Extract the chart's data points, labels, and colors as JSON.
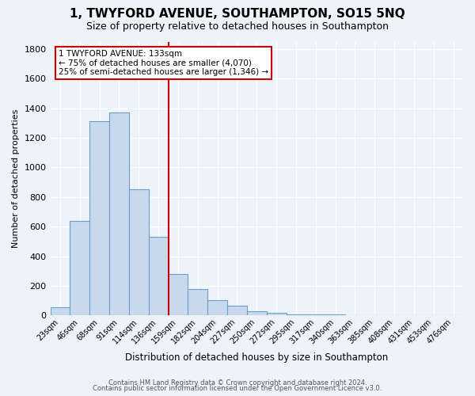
{
  "title": "1, TWYFORD AVENUE, SOUTHAMPTON, SO15 5NQ",
  "subtitle": "Size of property relative to detached houses in Southampton",
  "xlabel": "Distribution of detached houses by size in Southampton",
  "ylabel": "Number of detached properties",
  "bar_color": "#c9d9ed",
  "bar_edge_color": "#6a9fc8",
  "background_color": "#eef2f9",
  "grid_color": "#ffffff",
  "categories": [
    "23sqm",
    "46sqm",
    "68sqm",
    "91sqm",
    "114sqm",
    "136sqm",
    "159sqm",
    "182sqm",
    "204sqm",
    "227sqm",
    "250sqm",
    "272sqm",
    "295sqm",
    "317sqm",
    "340sqm",
    "363sqm",
    "385sqm",
    "408sqm",
    "431sqm",
    "453sqm",
    "476sqm"
  ],
  "values": [
    55,
    640,
    1310,
    1370,
    855,
    530,
    280,
    180,
    105,
    65,
    30,
    20,
    10,
    5,
    5,
    3,
    2,
    1,
    1,
    1,
    1
  ],
  "vline_x": 5.5,
  "vline_color": "#cc0000",
  "annotation_title": "1 TWYFORD AVENUE: 133sqm",
  "annotation_line1": "← 75% of detached houses are smaller (4,070)",
  "annotation_line2": "25% of semi-detached houses are larger (1,346) →",
  "annotation_box_color": "#ffffff",
  "annotation_box_edge": "#cc0000",
  "ylim": [
    0,
    1850
  ],
  "yticks": [
    0,
    200,
    400,
    600,
    800,
    1000,
    1200,
    1400,
    1600,
    1800
  ],
  "footer_line1": "Contains HM Land Registry data © Crown copyright and database right 2024.",
  "footer_line2": "Contains public sector information licensed under the Open Government Licence v3.0."
}
